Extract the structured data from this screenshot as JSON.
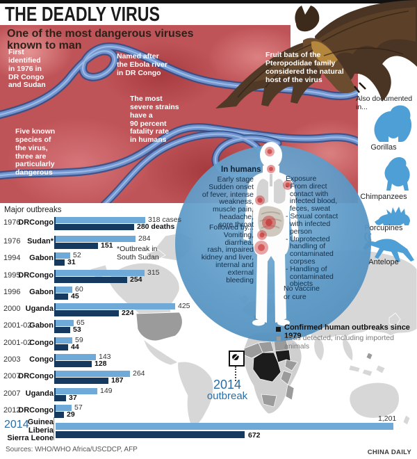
{
  "masthead": {
    "title": "THE DEADLY VIRUS"
  },
  "intro": {
    "subtitle": "One of the most dangerous viruses\nknown to man"
  },
  "virus_facts": {
    "first_identified": "First\nidentified\nin 1976 in\nDR Congo\nand Sudan",
    "named_after": "Named after\nthe Ebola river\nin DR Congo",
    "severe_strains": "The most\nsevere strains\nhave a\n90 percent\nfatality rate\nin humans",
    "five_species": "Five known\nspecies of\nthe virus,\nthree are\nparticularly\ndangerous",
    "fruit_bats": "Fruit bats of the\nPteropodidae family\nconsidered the natural\nhost of the virus"
  },
  "documented": {
    "label": "Also documented\nin...",
    "animals": [
      {
        "name": "Gorillas",
        "icon": "gorilla-icon"
      },
      {
        "name": "Chimpanzees",
        "icon": "chimpanzee-icon"
      },
      {
        "name": "Porcupines",
        "icon": "porcupine-icon"
      },
      {
        "name": "Antelope",
        "icon": "antelope-icon"
      }
    ]
  },
  "in_humans": {
    "title": "In humans",
    "early_stage": "Early stage\nSudden onset\nof fever, intense\nweakness,\nmuscle pain,\nheadache,\nsore throat",
    "followed_by": "Followed by...\nVomiting,\ndiarrhea,\nrash, impaired\nkidney and liver,\ninternal and\nexternal\nbleeding",
    "exposure": "Exposure\n- From direct\n  contact with\n  infected blood,\n  feces, sweat\n- Sexual contact\n  with infected\n  person\n- Unprotected\n  handling of\n  contaminated\n  corpses\n- Handling of\n  contaminated\n  objects",
    "no_vaccine": "No vaccine\nor cure"
  },
  "outbreak_chart": {
    "title": "Major outbreaks",
    "note": "*Outbreak in\nSouth Sudan",
    "rows": [
      {
        "year": "1976",
        "country": "DRCongo",
        "cases": 318,
        "deaths": 280,
        "cases_label": "318 cases",
        "deaths_label": "280 deaths"
      },
      {
        "year": "1976",
        "country": "Sudan*",
        "cases": 284,
        "deaths": 151,
        "cases_label": "284",
        "deaths_label": "151"
      },
      {
        "year": "1994",
        "country": "Gabon",
        "cases": 52,
        "deaths": 31,
        "cases_label": "52",
        "deaths_label": "31"
      },
      {
        "year": "1995",
        "country": "DRCongo",
        "cases": 315,
        "deaths": 254,
        "cases_label": "315",
        "deaths_label": "254"
      },
      {
        "year": "1996",
        "country": "Gabon",
        "cases": 60,
        "deaths": 45,
        "cases_label": "60",
        "deaths_label": "45"
      },
      {
        "year": "2000",
        "country": "Uganda",
        "cases": 425,
        "deaths": 224,
        "cases_label": "425",
        "deaths_label": "224"
      },
      {
        "year": "2001-02",
        "country": "Gabon",
        "cases": 65,
        "deaths": 53,
        "cases_label": "65",
        "deaths_label": "53"
      },
      {
        "year": "2001-02",
        "country": "Congo",
        "cases": 59,
        "deaths": 44,
        "cases_label": "59",
        "deaths_label": "44"
      },
      {
        "year": "2003",
        "country": "Congo",
        "cases": 143,
        "deaths": 128,
        "cases_label": "143",
        "deaths_label": "128"
      },
      {
        "year": "2007",
        "country": "DRCongo",
        "cases": 264,
        "deaths": 187,
        "cases_label": "264",
        "deaths_label": "187"
      },
      {
        "year": "2007",
        "country": "Uganda",
        "cases": 149,
        "deaths": 37,
        "cases_label": "149",
        "deaths_label": "37"
      },
      {
        "year": "2012",
        "country": "DRCongo",
        "cases": 57,
        "deaths": 29,
        "cases_label": "57",
        "deaths_label": "29"
      }
    ],
    "final_row": {
      "year": "2014",
      "countries": [
        "Guinea",
        "Liberia",
        "Sierra Leone"
      ],
      "cases": 1201,
      "cases_label": "1,201",
      "deaths": 672,
      "deaths_label": "672"
    }
  },
  "map": {
    "legend": [
      {
        "label": "Confirmed human outbreaks since 1979",
        "swatch": "#1a1a1a"
      },
      {
        "label": "Virus detected, including imported animals",
        "swatch": "#9b9b9b"
      }
    ],
    "callout": {
      "line1": "2014",
      "line2": "outbreak"
    }
  },
  "footer": {
    "sources": "Sources: WHO/WHO Africa/USCDCP, AFP",
    "credit": "CHINA DAILY"
  },
  "colors": {
    "bar_light": "#6ea9d8",
    "bar_dark": "#16395f",
    "accent_blue": "#2a6da6",
    "animal_blue": "#4d9fd6",
    "confirmed_black": "#1a1a1a",
    "detected_gray": "#9b9b9b"
  },
  "chart_data": {
    "type": "bar",
    "title": "Major outbreaks",
    "categories": [
      "1976 DRCongo",
      "1976 Sudan*",
      "1994 Gabon",
      "1995 DRCongo",
      "1996 Gabon",
      "2000 Uganda",
      "2001-02 Gabon",
      "2001-02 Congo",
      "2003 Congo",
      "2007 DRCongo",
      "2007 Uganda",
      "2012 DRCongo",
      "2014 Guinea/Liberia/Sierra Leone"
    ],
    "series": [
      {
        "name": "cases",
        "values": [
          318,
          284,
          52,
          315,
          60,
          425,
          65,
          59,
          143,
          264,
          149,
          57,
          1201
        ]
      },
      {
        "name": "deaths",
        "values": [
          280,
          151,
          31,
          254,
          45,
          224,
          53,
          44,
          128,
          187,
          37,
          29,
          672
        ]
      }
    ],
    "xlabel": "",
    "ylabel": "",
    "xlim": [
      0,
      1250
    ],
    "orientation": "horizontal",
    "grid": false,
    "annotations": [
      "*Outbreak in South Sudan",
      "No vaccine or cure"
    ]
  }
}
